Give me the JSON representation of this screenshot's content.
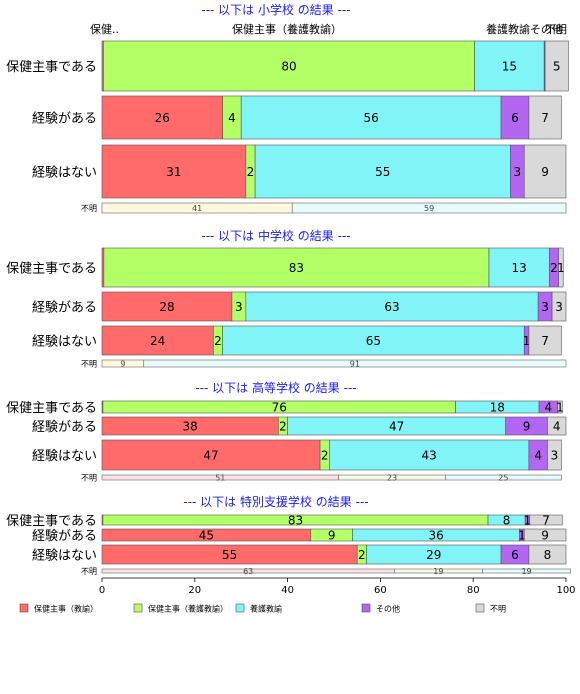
{
  "chart_data": {
    "type": "bar",
    "orientation": "horizontal-stacked",
    "xlim": [
      0,
      100
    ],
    "xticks": [
      "0",
      "20",
      "40",
      "60",
      "80",
      "100"
    ],
    "legend_position": "bottom",
    "colors": {
      "保健主事（教諭）": "#ff6b6b",
      "保健主事（養護教諭）": "#b3ff66",
      "養護教諭": "#80f4f7",
      "その他": "#b266f2",
      "不明": "#d9d9d9"
    },
    "series_names": [
      "保健主事（教諭）",
      "保健主事（養護教諭）",
      "養護教諭",
      "その他",
      "不明"
    ],
    "header_labels": [
      "保健..",
      "保健主事（養護教諭）",
      "養護教諭その他",
      "不明"
    ],
    "panels": [
      {
        "title": "--- 以下は 小学校 の結果 ---",
        "rows": [
          {
            "label": "保健主事である",
            "values": [
              0.3,
              80,
              15,
              0.2,
              5
            ],
            "labels": [
              "",
              "80",
              "15",
              "",
              "5"
            ]
          },
          {
            "label": "経験がある",
            "values": [
              26,
              4,
              56,
              6,
              7
            ],
            "labels": [
              "26",
              "4",
              "56",
              "6",
              "7"
            ]
          },
          {
            "label": "経験はない",
            "values": [
              31,
              2,
              55,
              3,
              9
            ],
            "labels": [
              "31",
              "2",
              "55",
              "3",
              "9"
            ]
          }
        ],
        "unknown": {
          "label": "不明",
          "values": [
            41,
            59
          ],
          "labels": [
            "41",
            "59"
          ]
        }
      },
      {
        "title": "--- 以下は 中学校 の結果 ---",
        "rows": [
          {
            "label": "保健主事である",
            "values": [
              0.4,
              83,
              13,
              2,
              1
            ],
            "labels": [
              "",
              "83",
              "13",
              "2",
              "1"
            ]
          },
          {
            "label": "経験がある",
            "values": [
              28,
              3,
              63,
              3,
              3
            ],
            "labels": [
              "28",
              "3",
              "63",
              "3",
              "3"
            ]
          },
          {
            "label": "経験はない",
            "values": [
              24,
              2,
              65,
              1,
              7
            ],
            "labels": [
              "24",
              "2",
              "65",
              "1",
              "7"
            ]
          }
        ],
        "unknown": {
          "label": "不明",
          "values": [
            9,
            91
          ],
          "labels": [
            "9",
            "91"
          ]
        }
      },
      {
        "title": "--- 以下は 高等学校 の結果 ---",
        "rows": [
          {
            "label": "保健主事である",
            "values": [
              0.2,
              76,
              18,
              4,
              1
            ],
            "labels": [
              "",
              "76",
              "18",
              "4",
              "1"
            ]
          },
          {
            "label": "経験がある",
            "values": [
              38,
              2,
              47,
              9,
              4
            ],
            "labels": [
              "38",
              "2",
              "47",
              "9",
              "4"
            ]
          },
          {
            "label": "経験はない",
            "values": [
              47,
              2,
              43,
              4,
              3
            ],
            "labels": [
              "47",
              "2",
              "43",
              "4",
              "3"
            ]
          }
        ],
        "unknown": {
          "label": "不明",
          "values": [
            51,
            23,
            25
          ],
          "labels": [
            "51",
            "23",
            "25"
          ]
        }
      },
      {
        "title": "--- 以下は 特別支援学校 の結果 ---",
        "rows": [
          {
            "label": "保健主事である",
            "values": [
              0.2,
              83,
              8,
              1,
              7
            ],
            "labels": [
              "",
              "83",
              "8",
              "1",
              "7"
            ]
          },
          {
            "label": "経験がある",
            "values": [
              45,
              9,
              36,
              1,
              9
            ],
            "labels": [
              "45",
              "9",
              "36",
              "1",
              "9"
            ]
          },
          {
            "label": "経験はない",
            "values": [
              55,
              2,
              29,
              6,
              8
            ],
            "labels": [
              "55",
              "2",
              "29",
              "6",
              "8"
            ]
          }
        ],
        "unknown": {
          "label": "不明",
          "values": [
            63,
            19,
            19
          ],
          "labels": [
            "63",
            "19",
            "19"
          ]
        }
      }
    ]
  }
}
